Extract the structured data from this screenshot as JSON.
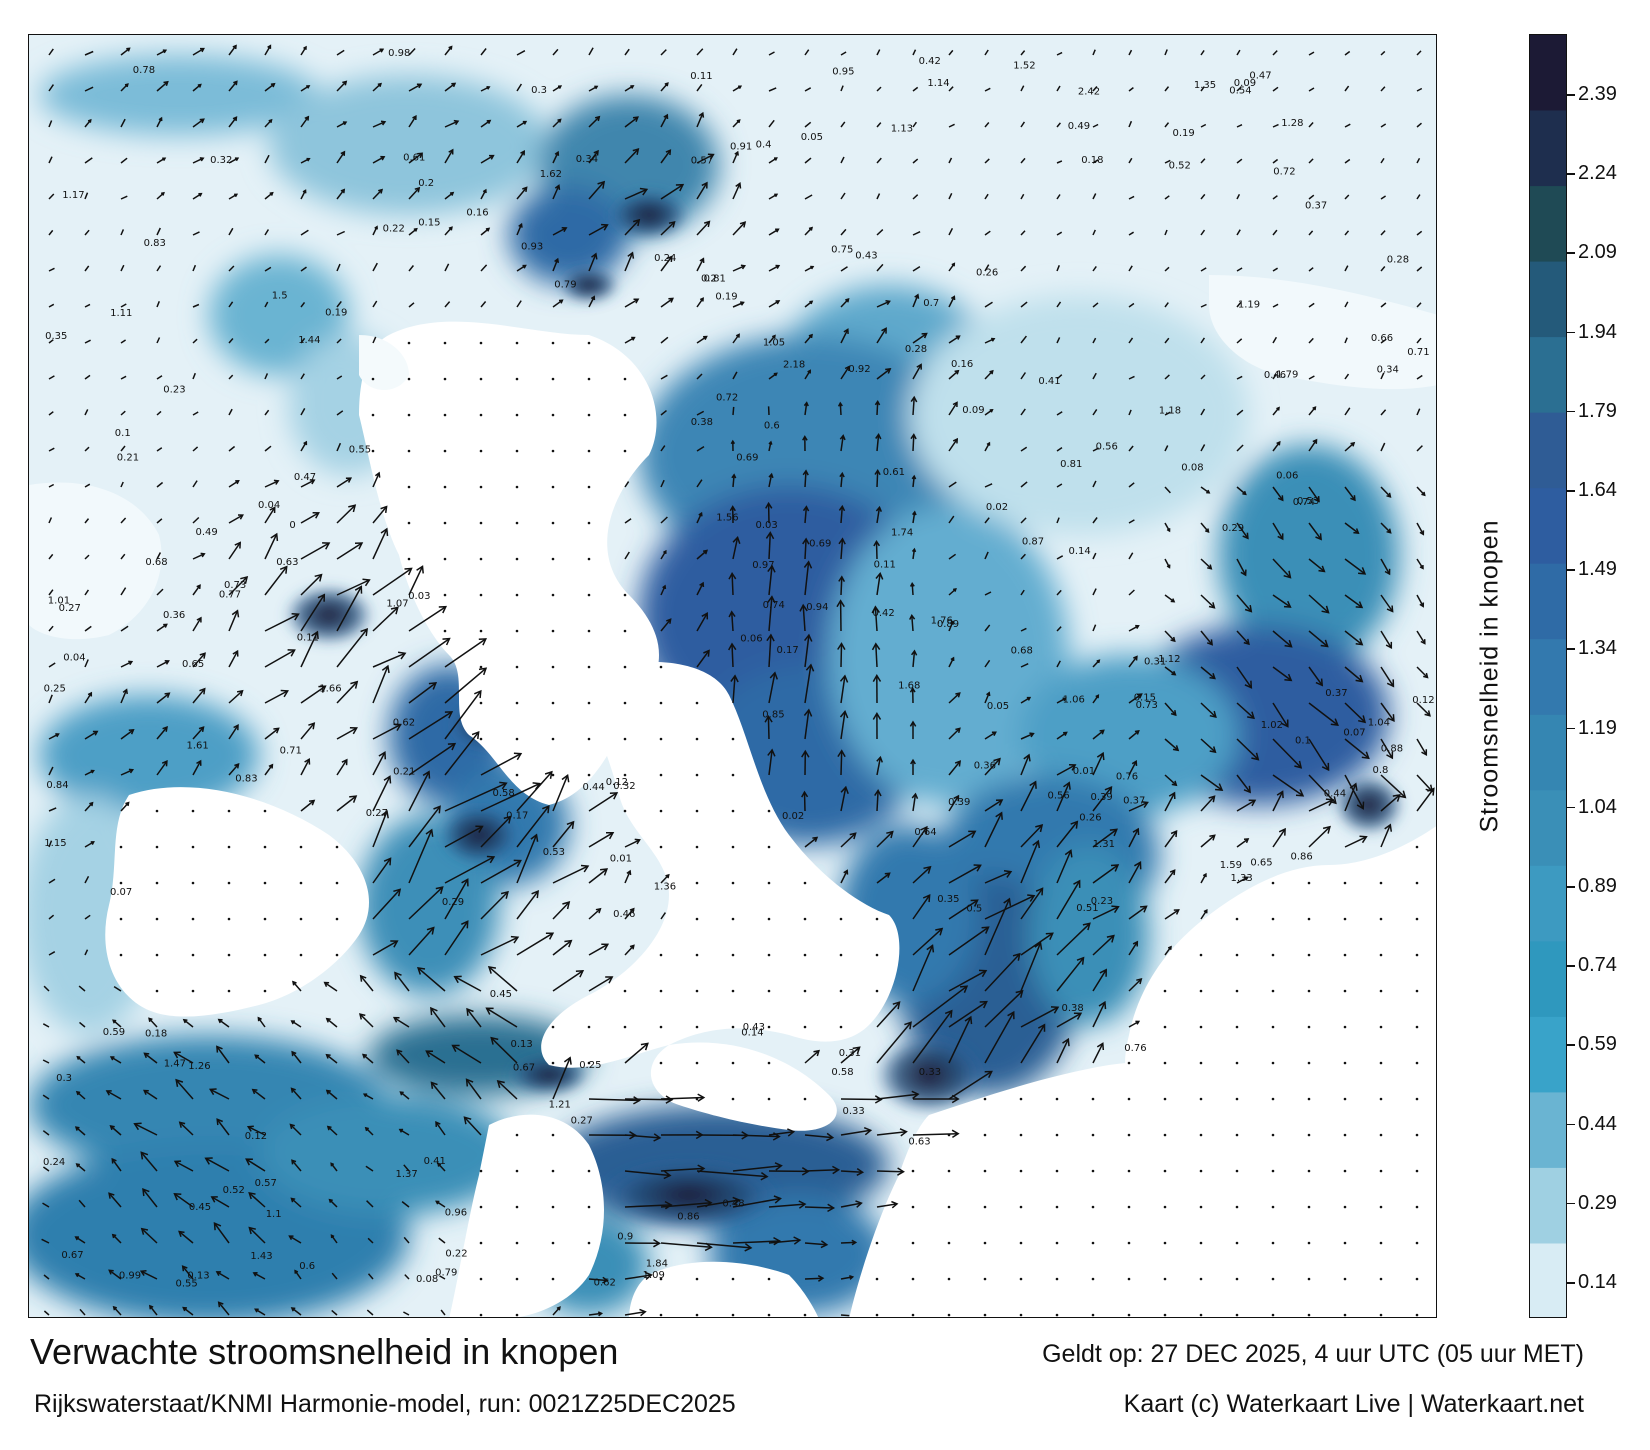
{
  "title": "Verwachte stroomsnelheid in knopen",
  "subtitle": "Rijkswaterstaat/KNMI Harmonie-model, run: 0021Z25DEC2025",
  "valid_time": "Geldt op: 27 DEC 2025, 4 uur UTC (05 uur MET)",
  "credit": "Kaart (c) Waterkaart Live | Waterkaart.net",
  "colorbar": {
    "label": "Stroomsnelheid in knopen",
    "ticks": [
      "2.39",
      "2.24",
      "2.09",
      "1.94",
      "1.79",
      "1.64",
      "1.49",
      "1.34",
      "1.19",
      "1.04",
      "0.89",
      "0.74",
      "0.59",
      "0.44",
      "0.29",
      "0.14"
    ],
    "colors": [
      "#1c1a35",
      "#1e2e4e",
      "#1f4a55",
      "#245a7a",
      "#2b6f92",
      "#2f5c95",
      "#2e5da0",
      "#2f6ba6",
      "#3379ae",
      "#3586b2",
      "#3a8fb7",
      "#3d9ac1",
      "#2f98be",
      "#39a3c9",
      "#6ab4d2",
      "#9fd0e2",
      "#d8ecf4"
    ]
  },
  "map_labels": [
    {
      "value": "0.34"
    },
    {
      "value": "0.19"
    },
    {
      "value": "0.44"
    },
    {
      "value": "0.31"
    },
    {
      "value": "0.22"
    },
    {
      "value": "0.27"
    },
    {
      "value": "0.24"
    },
    {
      "value": "0.13"
    },
    {
      "value": "0.14"
    },
    {
      "value": "0.17"
    },
    {
      "value": "0.11"
    },
    {
      "value": "0.12"
    },
    {
      "value": "0.08"
    },
    {
      "value": "0.25"
    },
    {
      "value": "0.32"
    },
    {
      "value": "0.38"
    },
    {
      "value": "0.49"
    },
    {
      "value": "0.42"
    },
    {
      "value": "0.52"
    },
    {
      "value": "0.57"
    },
    {
      "value": "0.71"
    },
    {
      "value": "0.79"
    },
    {
      "value": "0.69"
    },
    {
      "value": "0.76"
    },
    {
      "value": "0.33"
    },
    {
      "value": "0.21"
    },
    {
      "value": "0.16"
    },
    {
      "value": "0.55"
    },
    {
      "value": "0.61"
    },
    {
      "value": "0.63"
    },
    {
      "value": "0.72"
    },
    {
      "value": "0.86"
    },
    {
      "value": "0.94"
    },
    {
      "value": "1.1"
    },
    {
      "value": "1.14"
    },
    {
      "value": "1.12"
    },
    {
      "value": "1.21"
    },
    {
      "value": "1.36"
    },
    {
      "value": "1.47"
    },
    {
      "value": "1.59"
    },
    {
      "value": "1.68"
    },
    {
      "value": "1.37"
    },
    {
      "value": "1.28"
    },
    {
      "value": "1.62"
    },
    {
      "value": "1.74"
    },
    {
      "value": "1.26"
    },
    {
      "value": "1.76"
    },
    {
      "value": "1.84"
    },
    {
      "value": "2.18"
    },
    {
      "value": "2.42"
    },
    {
      "value": "1.56"
    },
    {
      "value": "1.44"
    },
    {
      "value": "0.91"
    },
    {
      "value": "0.83"
    },
    {
      "value": "0.65"
    },
    {
      "value": "0.58"
    },
    {
      "value": "0.46"
    },
    {
      "value": "0.37"
    },
    {
      "value": "0.28"
    },
    {
      "value": "0.05"
    },
    {
      "value": "0.02"
    },
    {
      "value": "0.03"
    },
    {
      "value": "0.06"
    },
    {
      "value": "0.09"
    },
    {
      "value": "0.41"
    },
    {
      "value": "0.53"
    },
    {
      "value": "0.67"
    },
    {
      "value": "0.74"
    },
    {
      "value": "0.89"
    },
    {
      "value": "0.97"
    },
    {
      "value": "1.05"
    },
    {
      "value": "1.19"
    },
    {
      "value": "1.35"
    },
    {
      "value": "1.52"
    },
    {
      "value": "0.48"
    },
    {
      "value": "0.36"
    },
    {
      "value": "0.29"
    },
    {
      "value": "0.23"
    },
    {
      "value": "0.18"
    },
    {
      "value": "0.1"
    },
    {
      "value": "0.07"
    },
    {
      "value": "0.04"
    },
    {
      "value": "0.01"
    },
    {
      "value": "0"
    },
    {
      "value": "0.43"
    },
    {
      "value": "0.56"
    },
    {
      "value": "0.68"
    },
    {
      "value": "0.81"
    },
    {
      "value": "0.95"
    },
    {
      "value": "1.02"
    },
    {
      "value": "0.6"
    },
    {
      "value": "0.45"
    },
    {
      "value": "0.3"
    },
    {
      "value": "0.26"
    },
    {
      "value": "0.15"
    },
    {
      "value": "0.2"
    },
    {
      "value": "0.35"
    },
    {
      "value": "0.39"
    },
    {
      "value": "0.47"
    },
    {
      "value": "0.54"
    },
    {
      "value": "0.62"
    },
    {
      "value": "0.73"
    },
    {
      "value": "0.85"
    },
    {
      "value": "0.98"
    },
    {
      "value": "1.09"
    },
    {
      "value": "1.17"
    },
    {
      "value": "1.33"
    },
    {
      "value": "1.43"
    },
    {
      "value": "1.61"
    },
    {
      "value": "1.79"
    },
    {
      "value": "1.66"
    },
    {
      "value": "1.5"
    },
    {
      "value": "1.31"
    },
    {
      "value": "1.18"
    },
    {
      "value": "1.04"
    },
    {
      "value": "0.92"
    },
    {
      "value": "0.8"
    },
    {
      "value": "0.66"
    },
    {
      "value": "0.51"
    },
    {
      "value": "0.4"
    },
    {
      "value": "0.16"
    },
    {
      "value": "0.12"
    },
    {
      "value": "0.08"
    },
    {
      "value": "0.27"
    },
    {
      "value": "0.33"
    },
    {
      "value": "0.59"
    },
    {
      "value": "0.77"
    },
    {
      "value": "0.88"
    },
    {
      "value": "0.7"
    },
    {
      "value": "0.64"
    },
    {
      "value": "0.5"
    },
    {
      "value": "0.44"
    },
    {
      "value": "0.36"
    },
    {
      "value": "0.22"
    },
    {
      "value": "0.14"
    },
    {
      "value": "0.06"
    },
    {
      "value": "0.02"
    },
    {
      "value": "0.11"
    },
    {
      "value": "0.19"
    },
    {
      "value": "0.24"
    },
    {
      "value": "0.31"
    },
    {
      "value": "0.37"
    },
    {
      "value": "0.42"
    },
    {
      "value": "0.55"
    },
    {
      "value": "0.63"
    },
    {
      "value": "0.72"
    },
    {
      "value": "0.78"
    },
    {
      "value": "0.84"
    },
    {
      "value": "0.9"
    },
    {
      "value": "0.96"
    },
    {
      "value": "1.01"
    },
    {
      "value": "1.07"
    },
    {
      "value": "1.13"
    },
    {
      "value": "1.15"
    },
    {
      "value": "0.87"
    },
    {
      "value": "0.75"
    },
    {
      "value": "0.69"
    },
    {
      "value": "0.57"
    },
    {
      "value": "0.49"
    },
    {
      "value": "0.41"
    },
    {
      "value": "0.32"
    },
    {
      "value": "0.25"
    },
    {
      "value": "0.17"
    },
    {
      "value": "0.09"
    },
    {
      "value": "0.03"
    },
    {
      "value": "0.13"
    },
    {
      "value": "0.21"
    },
    {
      "value": "0.28"
    },
    {
      "value": "0.34"
    },
    {
      "value": "0.46"
    },
    {
      "value": "0.52"
    },
    {
      "value": "0.58"
    },
    {
      "value": "0.65"
    },
    {
      "value": "0.71"
    },
    {
      "value": "0.53"
    },
    {
      "value": "0.38"
    },
    {
      "value": "0.29"
    },
    {
      "value": "0.2"
    },
    {
      "value": "0.12"
    },
    {
      "value": "0.05"
    },
    {
      "value": "0.18"
    },
    {
      "value": "0.26"
    },
    {
      "value": "0.35"
    },
    {
      "value": "0.43"
    },
    {
      "value": "0.61"
    },
    {
      "value": "0.68"
    },
    {
      "value": "0.76"
    },
    {
      "value": "0.83"
    },
    {
      "value": "0.93"
    },
    {
      "value": "1.06"
    },
    {
      "value": "1.11"
    },
    {
      "value": "0.99"
    },
    {
      "value": "0.86"
    },
    {
      "value": "0.79"
    },
    {
      "value": "0.73"
    },
    {
      "value": "0.6"
    },
    {
      "value": "0.47"
    },
    {
      "value": "0.39"
    },
    {
      "value": "0.3"
    },
    {
      "value": "0.23"
    },
    {
      "value": "0.15"
    },
    {
      "value": "0.1"
    },
    {
      "value": "0.07"
    },
    {
      "value": "0.04"
    },
    {
      "value": "0.01"
    },
    {
      "value": "0.56"
    },
    {
      "value": "0.62"
    },
    {
      "value": "0.67"
    },
    {
      "value": "0.74"
    },
    {
      "value": "0.81"
    },
    {
      "value": "0.45"
    },
    {
      "value": "0.37"
    },
    {
      "value": "0.27"
    },
    {
      "value": "0.19"
    },
    {
      "value": "0.11"
    }
  ]
}
